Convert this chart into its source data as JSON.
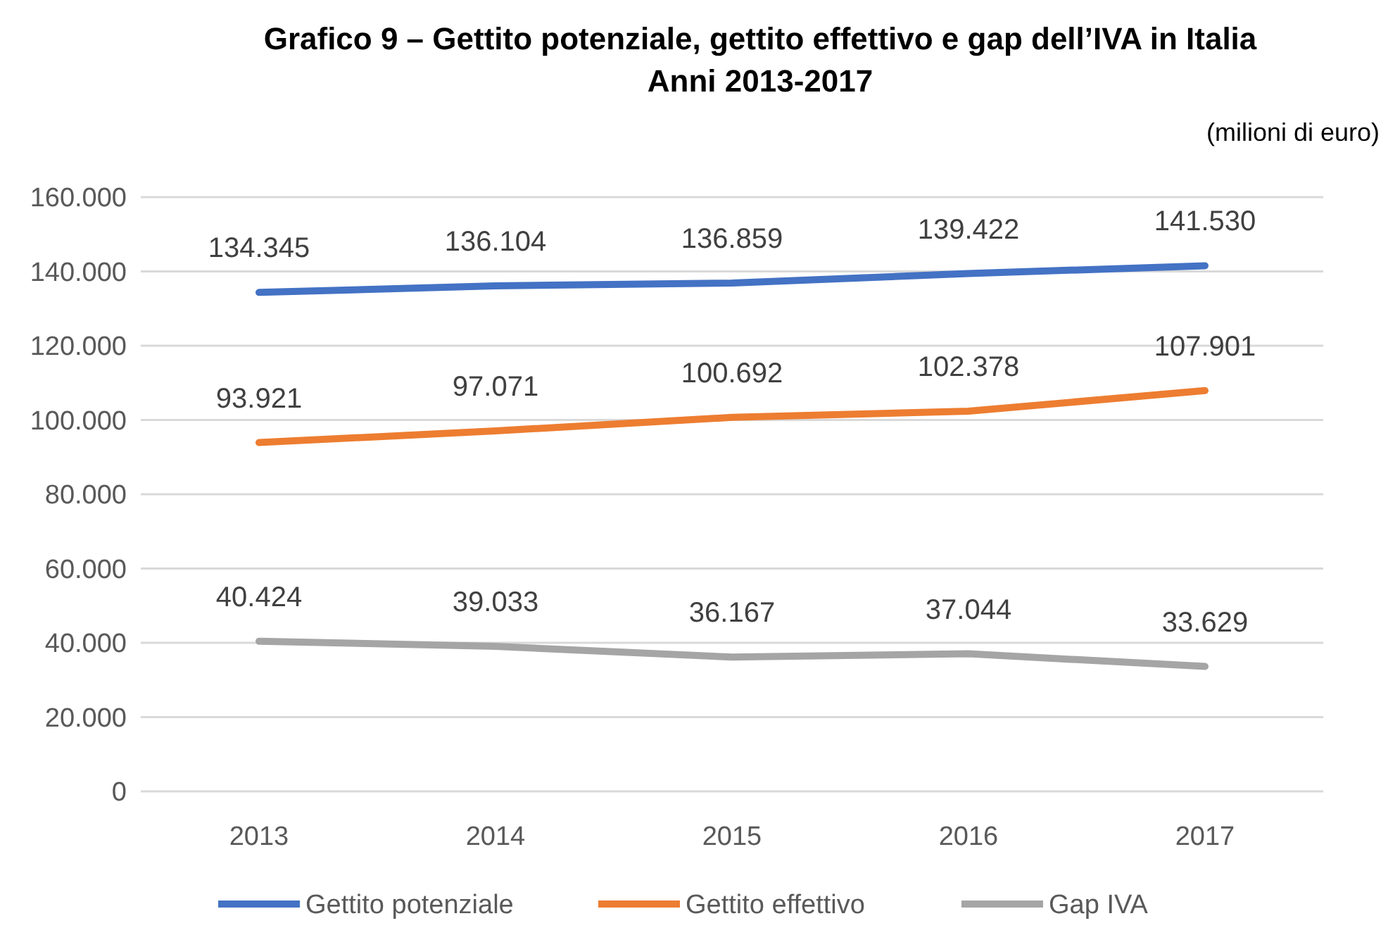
{
  "chart_data": {
    "type": "line",
    "title": "Grafico 9 – Gettito potenziale, gettito effettivo e gap dell’IVA in Italia",
    "subtitle": "Anni 2013-2017",
    "annotations": [
      "(milioni di euro)"
    ],
    "categories": [
      "2013",
      "2014",
      "2015",
      "2016",
      "2017"
    ],
    "series": [
      {
        "name": "Gettito potenziale",
        "color": "#4472c4",
        "values": [
          134345,
          136104,
          136859,
          139422,
          141530
        ],
        "value_labels": [
          "134.345",
          "136.104",
          "136.859",
          "139.422",
          "141.530"
        ]
      },
      {
        "name": "Gettito effettivo",
        "color": "#ed7d31",
        "values": [
          93921,
          97071,
          100692,
          102378,
          107901
        ],
        "value_labels": [
          "93.921",
          "97.071",
          "100.692",
          "102.378",
          "107.901"
        ]
      },
      {
        "name": "Gap IVA",
        "color": "#a5a5a5",
        "values": [
          40424,
          39033,
          36167,
          37044,
          33629
        ],
        "value_labels": [
          "40.424",
          "39.033",
          "36.167",
          "37.044",
          "33.629"
        ]
      }
    ],
    "ylim": [
      0,
      160000
    ],
    "yticks": [
      {
        "value": 0,
        "label": "0"
      },
      {
        "value": 20000,
        "label": "20.000"
      },
      {
        "value": 40000,
        "label": "40.000"
      },
      {
        "value": 60000,
        "label": "60.000"
      },
      {
        "value": 80000,
        "label": "80.000"
      },
      {
        "value": 100000,
        "label": "100.000"
      },
      {
        "value": 120000,
        "label": "120.000"
      },
      {
        "value": 140000,
        "label": "140.000"
      },
      {
        "value": 160000,
        "label": "160.000"
      }
    ],
    "grid": "y",
    "legend": "bottom",
    "marker": "none",
    "line_style": "solid"
  }
}
